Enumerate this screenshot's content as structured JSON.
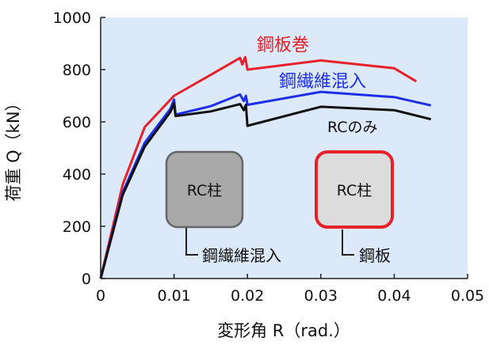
{
  "chart_data": {
    "type": "line",
    "title": "",
    "xlabel": "変形角 R（rad.）",
    "ylabel": "荷重 Q（kN）",
    "xlim": [
      0,
      0.05
    ],
    "ylim": [
      0,
      1000
    ],
    "x_ticks": [
      "0",
      "0.01",
      "0.02",
      "0.03",
      "0.04",
      "0.05"
    ],
    "y_ticks": [
      "0",
      "200",
      "400",
      "600",
      "800",
      "1000"
    ],
    "grid": false,
    "plot_background": "#dbe9f8",
    "series": [
      {
        "name": "鋼板巻",
        "color": "#e8202a",
        "points": [
          [
            0,
            0
          ],
          [
            0.003,
            360
          ],
          [
            0.006,
            580
          ],
          [
            0.01,
            700
          ],
          [
            0.015,
            780
          ],
          [
            0.019,
            845
          ],
          [
            0.0193,
            820
          ],
          [
            0.0197,
            848
          ],
          [
            0.02,
            800
          ],
          [
            0.03,
            835
          ],
          [
            0.04,
            805
          ],
          [
            0.043,
            755
          ]
        ]
      },
      {
        "name": "鋼繊維混入",
        "color": "#1f2ee8",
        "points": [
          [
            0,
            0
          ],
          [
            0.003,
            330
          ],
          [
            0.006,
            520
          ],
          [
            0.0095,
            650
          ],
          [
            0.01,
            685
          ],
          [
            0.0102,
            628
          ],
          [
            0.015,
            660
          ],
          [
            0.019,
            705
          ],
          [
            0.0195,
            680
          ],
          [
            0.0198,
            700
          ],
          [
            0.02,
            665
          ],
          [
            0.03,
            715
          ],
          [
            0.04,
            695
          ],
          [
            0.045,
            663
          ]
        ]
      },
      {
        "name": "RCのみ",
        "color": "#111111",
        "points": [
          [
            0,
            0
          ],
          [
            0.003,
            320
          ],
          [
            0.006,
            505
          ],
          [
            0.0095,
            638
          ],
          [
            0.01,
            670
          ],
          [
            0.0102,
            622
          ],
          [
            0.015,
            640
          ],
          [
            0.019,
            668
          ],
          [
            0.0195,
            645
          ],
          [
            0.0198,
            665
          ],
          [
            0.02,
            585
          ],
          [
            0.03,
            658
          ],
          [
            0.04,
            645
          ],
          [
            0.045,
            610
          ]
        ]
      }
    ],
    "annotations": {
      "insets": [
        {
          "label": "RC柱",
          "fill": "#a9a9a9",
          "stroke": "#666666",
          "caption": "鋼繊維混入"
        },
        {
          "label": "RC柱",
          "fill": "#dcdcdc",
          "stroke": "#e8202a",
          "caption": "鋼板"
        }
      ]
    }
  }
}
